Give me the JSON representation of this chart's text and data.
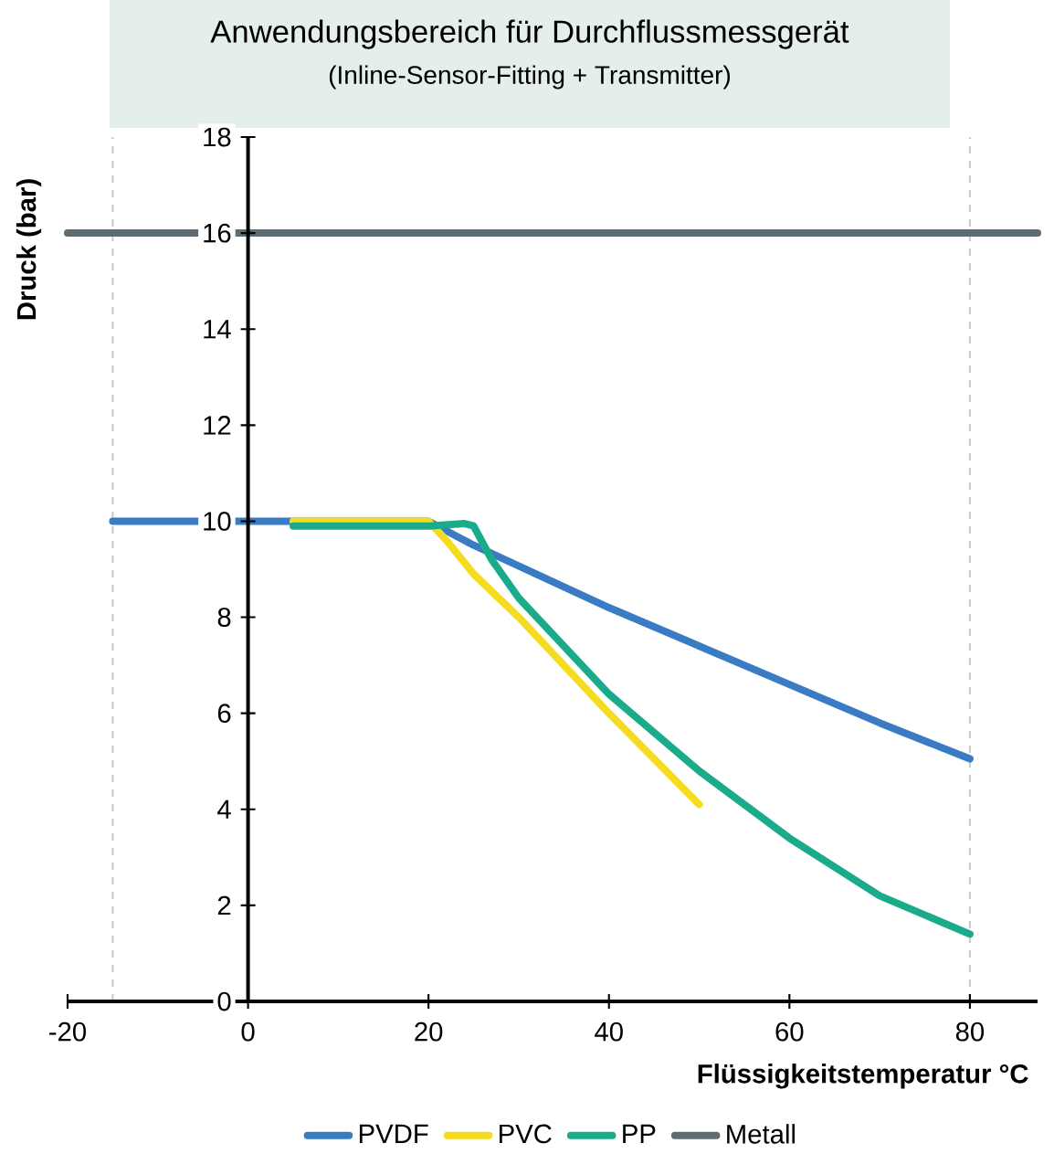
{
  "chart_data": {
    "type": "line",
    "title": "Anwendungsbereich für Durchflussmessgerät",
    "subtitle": "(Inline-Sensor-Fitting + Transmitter)",
    "xlabel": "Flüssigkeitstemperatur °C",
    "ylabel": "Druck (bar)",
    "xlim": [
      -20,
      87.5
    ],
    "ylim": [
      0,
      18
    ],
    "xticks": [
      -20,
      0,
      20,
      40,
      60,
      80
    ],
    "yticks": [
      0,
      2,
      4,
      6,
      8,
      10,
      12,
      14,
      16,
      18
    ],
    "grid": false,
    "legend": "bottom",
    "marker": "none",
    "line_style": "solid",
    "ref_lines": [
      {
        "axis": "x",
        "value": -15,
        "label": null,
        "color": "#cccccc",
        "line_style": "dashed"
      },
      {
        "axis": "x",
        "value": 80,
        "label": null,
        "color": "#cccccc",
        "line_style": "dashed"
      }
    ],
    "series": [
      {
        "name": "PVDF",
        "color": "#3a7cc4",
        "x": [
          -15,
          20,
          25,
          40,
          50,
          60,
          70,
          80
        ],
        "values": [
          10,
          10,
          9.5,
          8.2,
          7.4,
          6.6,
          5.8,
          5.05
        ]
      },
      {
        "name": "PVC",
        "color": "#f5dc1e",
        "x": [
          5,
          20,
          22,
          25,
          30,
          40,
          50
        ],
        "values": [
          10,
          10,
          9.6,
          8.9,
          8.0,
          6.0,
          4.1
        ]
      },
      {
        "name": "PP",
        "color": "#1aab8a",
        "x": [
          5,
          20,
          24,
          25,
          27,
          30,
          40,
          50,
          60,
          70,
          80
        ],
        "values": [
          9.9,
          9.9,
          9.95,
          9.9,
          9.2,
          8.4,
          6.4,
          4.8,
          3.4,
          2.2,
          1.4
        ]
      },
      {
        "name": "Metall",
        "color": "#5f6b73",
        "x": [
          -20,
          87.5
        ],
        "values": [
          16,
          16
        ]
      }
    ]
  }
}
